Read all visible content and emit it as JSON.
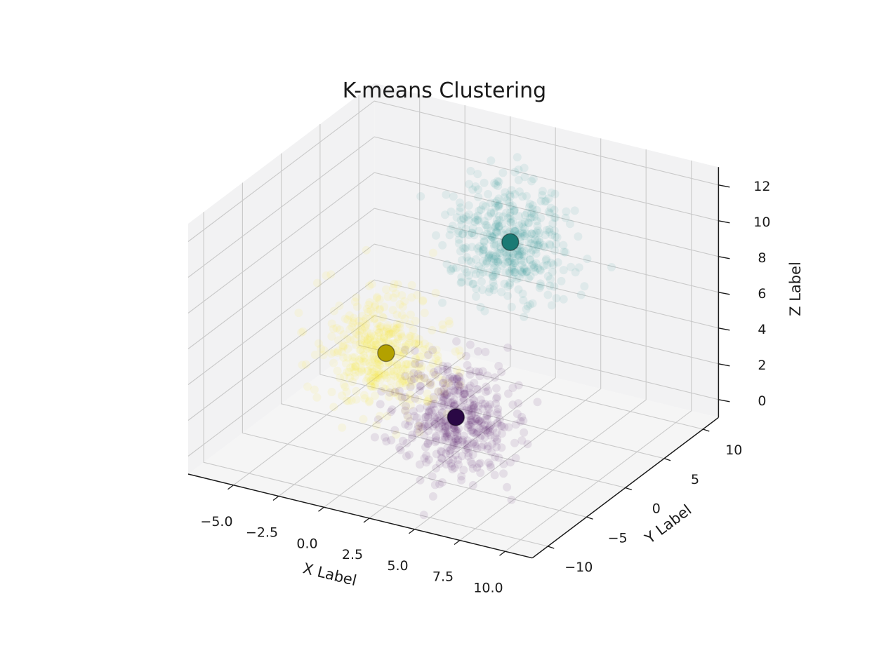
{
  "chart_data": {
    "type": "scatter",
    "projection": "3d",
    "title": "K-means Clustering",
    "xlabel": "X Label",
    "ylabel": "Y Label",
    "zlabel": "Z Label",
    "xlim": [
      -7.5,
      11.5
    ],
    "ylim": [
      -12,
      12
    ],
    "zlim": [
      -1,
      13
    ],
    "xticks": [
      -5,
      -2.5,
      0,
      2.5,
      5,
      7.5,
      10
    ],
    "xtick_labels": [
      "−5.0",
      "−2.5",
      "0.0",
      "2.5",
      "5.0",
      "7.5",
      "10.0"
    ],
    "yticks": [
      -10,
      -5,
      0,
      5,
      10
    ],
    "ytick_labels": [
      "−10",
      "−5",
      "0",
      "5",
      "10"
    ],
    "zticks": [
      0,
      2,
      4,
      6,
      8,
      10,
      12
    ],
    "ztick_labels": [
      "0",
      "2",
      "4",
      "6",
      "8",
      "10",
      "12"
    ],
    "grid": true,
    "legend": false,
    "clusters": [
      {
        "name": "teal",
        "color": "#21918c",
        "centroid_color": "#1b7a74",
        "centroid": [
          3,
          5,
          9
        ],
        "std": 1.5,
        "n_points": 450,
        "point_alpha": 0.09
      },
      {
        "name": "yellow",
        "color": "#fde725",
        "centroid_color": "#b3a100",
        "centroid": [
          0,
          -4,
          5
        ],
        "std": 1.5,
        "n_points": 450,
        "point_alpha": 0.09
      },
      {
        "name": "purple",
        "color": "#440154",
        "centroid_color": "#2a0845",
        "centroid": [
          3,
          -2,
          1.5
        ],
        "std": 1.5,
        "n_points": 450,
        "point_alpha": 0.09
      }
    ],
    "colors": {
      "background": "#ffffff",
      "pane_wall": "#f2f2f3",
      "pane_floor": "#f5f5f5",
      "grid_line": "#c9c9c9",
      "axis_line": "#1a1a1a",
      "text": "#1a1a1a"
    }
  }
}
